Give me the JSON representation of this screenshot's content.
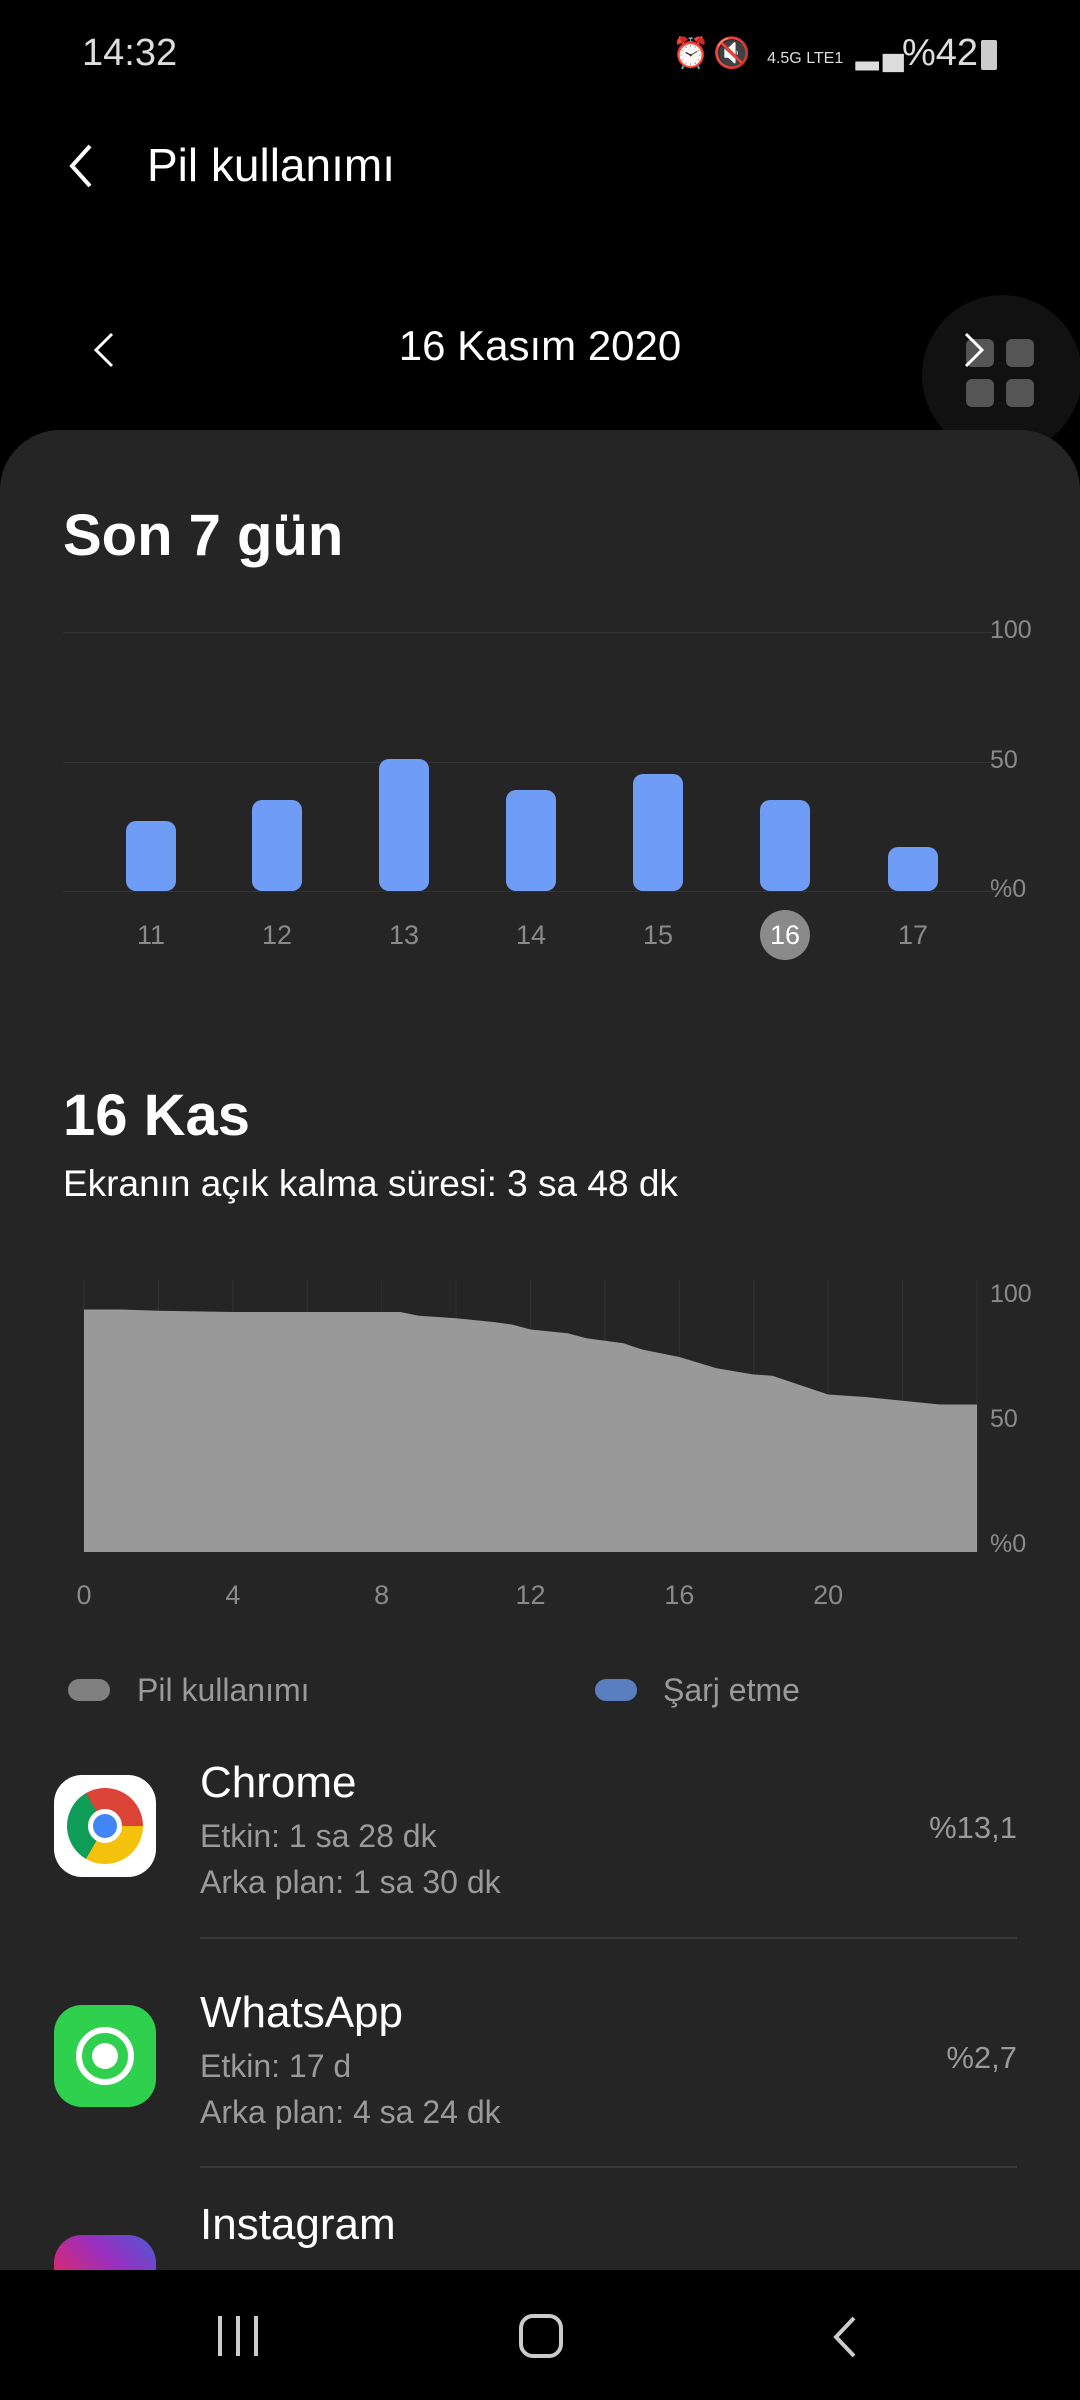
{
  "status_bar": {
    "time": "14:32",
    "network": "4.5G LTE1",
    "battery": "%42",
    "icons": [
      "alarm-icon",
      "mute-icon",
      "volte-icon",
      "signal-icon",
      "battery-icon"
    ]
  },
  "header": {
    "title": "Pil kullanımı",
    "back_icon": "chevron-left-icon"
  },
  "date_nav": {
    "date": "16 Kasım 2020"
  },
  "weekly": {
    "title": "Son 7 gün"
  },
  "day": {
    "title": "16 Kas",
    "screen_time": "Ekranın açık kalma süresi: 3 sa 48 dk"
  },
  "chart_data": [
    {
      "type": "bar",
      "categories": [
        "11",
        "12",
        "13",
        "14",
        "15",
        "16",
        "17"
      ],
      "values": [
        27,
        35,
        51,
        39,
        45,
        35,
        17
      ],
      "selected": "16",
      "ylim": [
        0,
        100
      ],
      "yticks": [
        "100",
        "50",
        "%0"
      ],
      "color": "#6f9cf5"
    },
    {
      "type": "area",
      "x": [
        0,
        1,
        2,
        4,
        6,
        8,
        8.5,
        9,
        10,
        11,
        11.5,
        12,
        13,
        13.5,
        14.5,
        15,
        16,
        17,
        18,
        18.5,
        19,
        20,
        21,
        22,
        23,
        24
      ],
      "y": [
        97,
        97,
        96.5,
        96,
        96,
        96,
        96,
        94.5,
        93.5,
        92,
        91,
        89,
        87.5,
        85.5,
        83.5,
        81,
        78,
        73.5,
        71,
        70.5,
        68,
        63,
        62,
        60.5,
        59,
        59
      ],
      "xlim": [
        0,
        24
      ],
      "xticks": [
        "0",
        "4",
        "8",
        "12",
        "16",
        "20"
      ],
      "ylim": [
        0,
        100
      ],
      "yticks": [
        "100",
        "50",
        "%0"
      ],
      "color": "#999999"
    }
  ],
  "legend": [
    {
      "label": "Pil kullanımı",
      "color": "#808080"
    },
    {
      "label": "Şarj etme",
      "color": "#5a7fc0"
    }
  ],
  "apps": [
    {
      "name": "Chrome",
      "active": "Etkin: 1 sa 28 dk",
      "background": "Arka plan: 1 sa 30 dk",
      "percent": "%13,1"
    },
    {
      "name": "WhatsApp",
      "active": "Etkin: 17 d",
      "background": "Arka plan: 4 sa 24 dk",
      "percent": "%2,7"
    },
    {
      "name": "Instagram"
    }
  ]
}
